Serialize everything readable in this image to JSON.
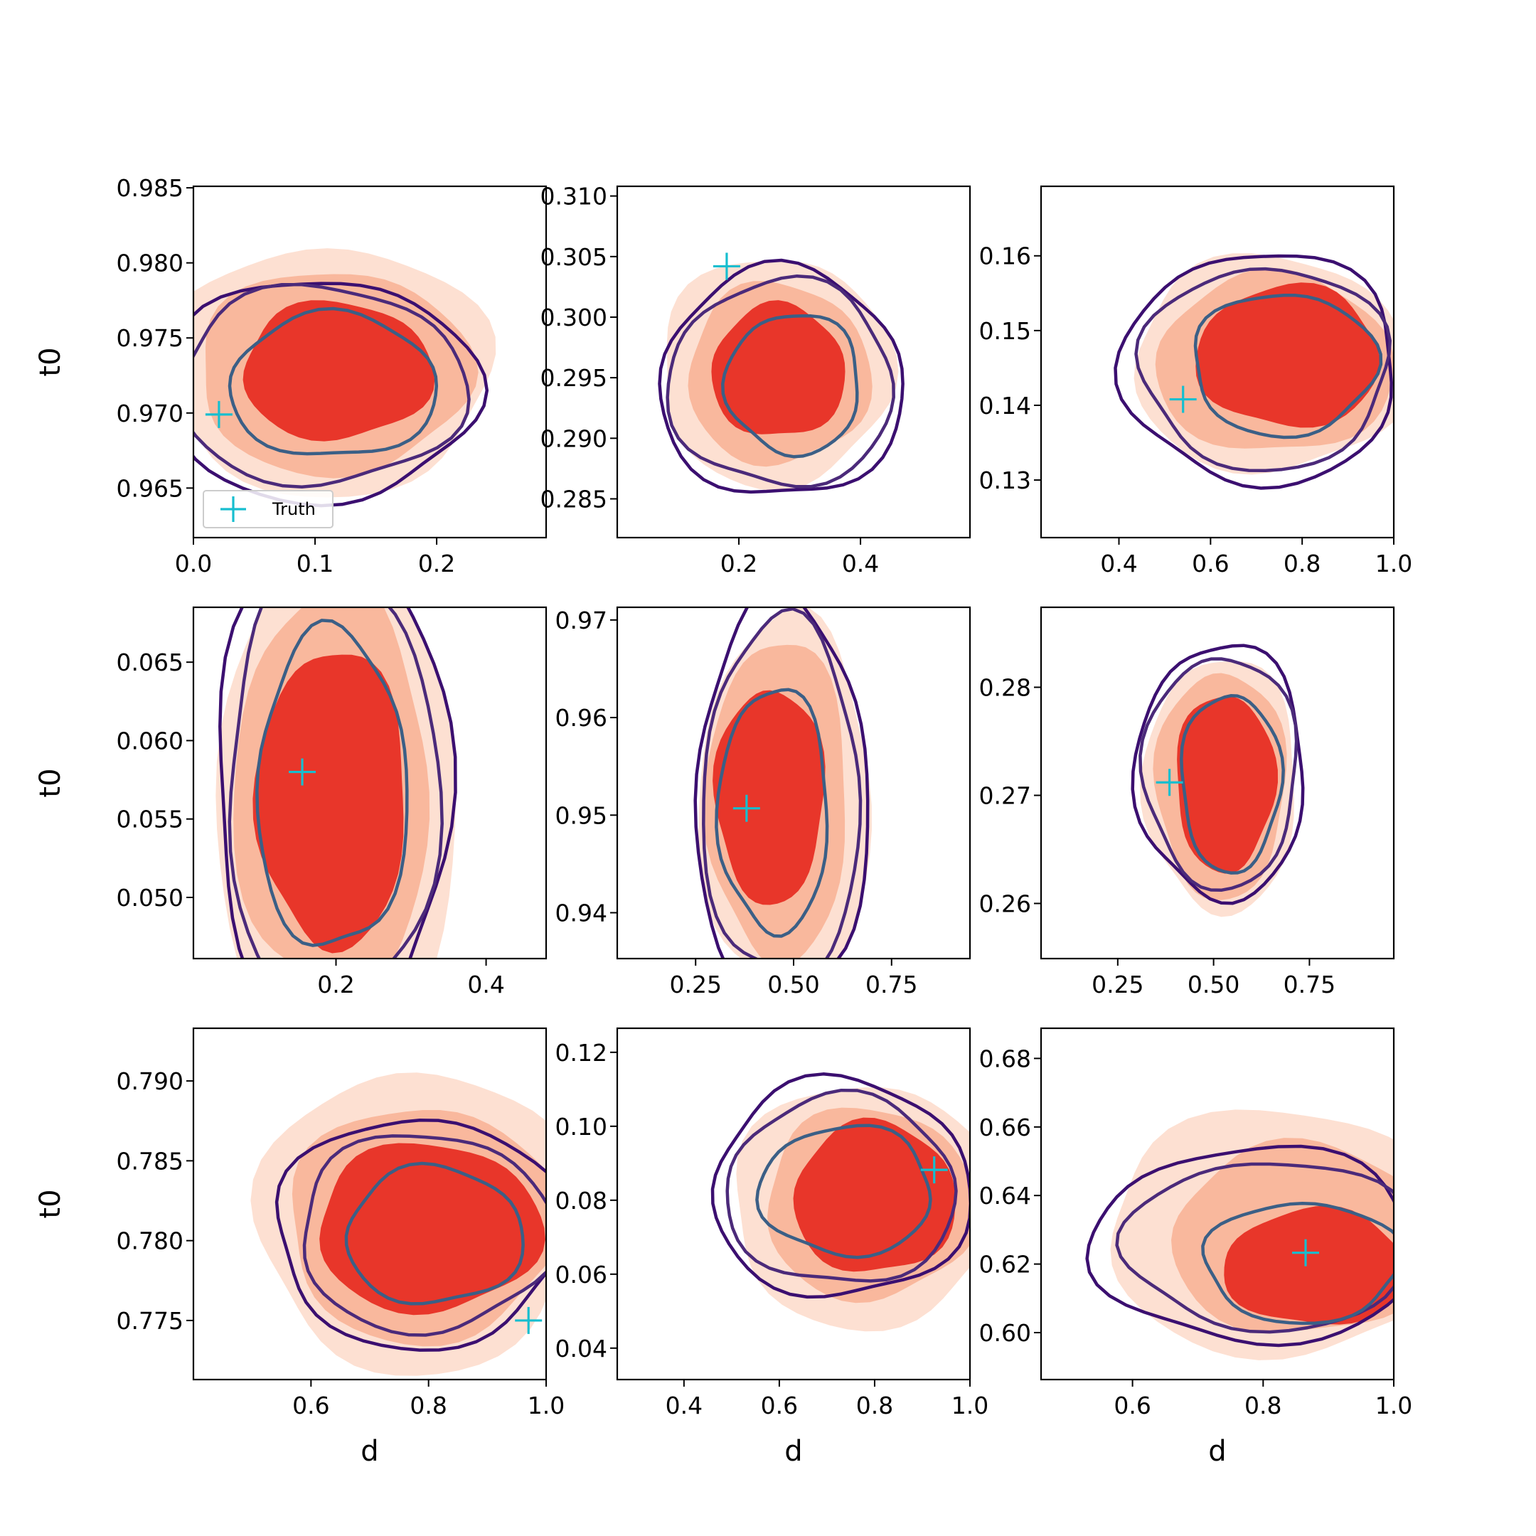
{
  "figure": {
    "chart_data": [
      {
        "type": "contour",
        "ylabel": "t0",
        "xlabel": "",
        "xlim": [
          0.0,
          0.29
        ],
        "ylim": [
          0.9617,
          0.9851
        ],
        "xticks": [
          {
            "v": 0.0,
            "label": "0.0"
          },
          {
            "v": 0.1,
            "label": "0.1"
          },
          {
            "v": 0.2,
            "label": "0.2"
          }
        ],
        "yticks": [
          {
            "v": 0.965,
            "label": "0.965"
          },
          {
            "v": 0.97,
            "label": "0.970"
          },
          {
            "v": 0.975,
            "label": "0.975"
          },
          {
            "v": 0.98,
            "label": "0.980"
          },
          {
            "v": 0.985,
            "label": "0.985"
          }
        ],
        "truth": {
          "x": 0.021,
          "y": 0.9699
        },
        "legend": {
          "label": "Truth",
          "loc": "lower left"
        },
        "filled": [
          {
            "cx": 0.11,
            "cy": 0.9728,
            "rx": 0.135,
            "ry": 0.0083
          },
          {
            "cx": 0.115,
            "cy": 0.9727,
            "rx": 0.112,
            "ry": 0.0068
          },
          {
            "cx": 0.118,
            "cy": 0.9728,
            "rx": 0.078,
            "ry": 0.0046
          }
        ],
        "lines": [
          {
            "cx": 0.105,
            "cy": 0.9715,
            "rx": 0.128,
            "ry": 0.0074,
            "color": "#3b0f70"
          },
          {
            "cx": 0.105,
            "cy": 0.9718,
            "rx": 0.118,
            "ry": 0.0066,
            "color": "#4b2a7a"
          },
          {
            "cx": 0.115,
            "cy": 0.9718,
            "rx": 0.085,
            "ry": 0.0048,
            "color": "#3b5f86"
          }
        ]
      },
      {
        "type": "contour",
        "ylabel": "",
        "xlabel": "",
        "xlim": [
          0.0,
          0.58
        ],
        "ylim": [
          0.2818,
          0.3108
        ],
        "xticks": [
          {
            "v": 0.2,
            "label": "0.2"
          },
          {
            "v": 0.4,
            "label": "0.4"
          }
        ],
        "yticks": [
          {
            "v": 0.285,
            "label": "0.285"
          },
          {
            "v": 0.29,
            "label": "0.290"
          },
          {
            "v": 0.295,
            "label": "0.295"
          },
          {
            "v": 0.3,
            "label": "0.300"
          },
          {
            "v": 0.305,
            "label": "0.305"
          },
          {
            "v": 0.31,
            "label": "0.310"
          }
        ],
        "truth": {
          "x": 0.18,
          "y": 0.3042
        },
        "filled": [
          {
            "cx": 0.26,
            "cy": 0.2955,
            "rx": 0.19,
            "ry": 0.0095
          },
          {
            "cx": 0.265,
            "cy": 0.2953,
            "rx": 0.15,
            "ry": 0.0075
          },
          {
            "cx": 0.265,
            "cy": 0.2955,
            "rx": 0.11,
            "ry": 0.0055
          }
        ],
        "lines": [
          {
            "cx": 0.27,
            "cy": 0.2945,
            "rx": 0.2,
            "ry": 0.0095,
            "color": "#3b0f70"
          },
          {
            "cx": 0.27,
            "cy": 0.2945,
            "rx": 0.185,
            "ry": 0.0085,
            "color": "#4b2a7a"
          },
          {
            "cx": 0.29,
            "cy": 0.2945,
            "rx": 0.11,
            "ry": 0.0058,
            "color": "#3b5f86"
          }
        ]
      },
      {
        "type": "contour",
        "ylabel": "",
        "xlabel": "",
        "xlim": [
          0.23,
          1.0
        ],
        "ylim": [
          0.1223,
          0.1693
        ],
        "xticks": [
          {
            "v": 0.4,
            "label": "0.4"
          },
          {
            "v": 0.6,
            "label": "0.6"
          },
          {
            "v": 0.8,
            "label": "0.8"
          },
          {
            "v": 1.0,
            "label": "1.0"
          }
        ],
        "yticks": [
          {
            "v": 0.13,
            "label": "0.13"
          },
          {
            "v": 0.14,
            "label": "0.14"
          },
          {
            "v": 0.15,
            "label": "0.15"
          },
          {
            "v": 0.16,
            "label": "0.16"
          }
        ],
        "truth": {
          "x": 0.54,
          "y": 0.1408
        },
        "filled": [
          {
            "cx": 0.73,
            "cy": 0.1455,
            "rx": 0.3,
            "ry": 0.0145
          },
          {
            "cx": 0.74,
            "cy": 0.1455,
            "rx": 0.26,
            "ry": 0.012
          },
          {
            "cx": 0.77,
            "cy": 0.1465,
            "rx": 0.2,
            "ry": 0.0095
          }
        ],
        "lines": [
          {
            "cx": 0.71,
            "cy": 0.145,
            "rx": 0.3,
            "ry": 0.0155,
            "color": "#3b0f70"
          },
          {
            "cx": 0.72,
            "cy": 0.145,
            "rx": 0.27,
            "ry": 0.0135,
            "color": "#4b2a7a"
          },
          {
            "cx": 0.76,
            "cy": 0.1455,
            "rx": 0.2,
            "ry": 0.0095,
            "color": "#3b5f86"
          }
        ]
      },
      {
        "type": "contour",
        "ylabel": "t0",
        "xlabel": "",
        "xlim": [
          0.01,
          0.48
        ],
        "ylim": [
          0.0461,
          0.0685
        ],
        "xticks": [
          {
            "v": 0.2,
            "label": "0.2"
          },
          {
            "v": 0.4,
            "label": "0.4"
          }
        ],
        "yticks": [
          {
            "v": 0.05,
            "label": "0.050"
          },
          {
            "v": 0.055,
            "label": "0.055"
          },
          {
            "v": 0.06,
            "label": "0.060"
          },
          {
            "v": 0.065,
            "label": "0.065"
          }
        ],
        "truth": {
          "x": 0.155,
          "y": 0.058
        },
        "filled": [
          {
            "cx": 0.2,
            "cy": 0.0565,
            "rx": 0.16,
            "ry": 0.0165
          },
          {
            "cx": 0.195,
            "cy": 0.0567,
            "rx": 0.13,
            "ry": 0.013
          },
          {
            "cx": 0.195,
            "cy": 0.0563,
            "rx": 0.1,
            "ry": 0.0095
          }
        ],
        "lines": [
          {
            "cx": 0.195,
            "cy": 0.0567,
            "rx": 0.155,
            "ry": 0.0162,
            "color": "#3b0f70"
          },
          {
            "cx": 0.195,
            "cy": 0.0567,
            "rx": 0.14,
            "ry": 0.0145,
            "color": "#4b2a7a"
          },
          {
            "cx": 0.195,
            "cy": 0.0568,
            "rx": 0.1,
            "ry": 0.0102,
            "color": "#3b5f86"
          }
        ]
      },
      {
        "type": "contour",
        "ylabel": "",
        "xlabel": "",
        "xlim": [
          0.05,
          0.95
        ],
        "ylim": [
          0.9353,
          0.9713
        ],
        "xticks": [
          {
            "v": 0.25,
            "label": "0.25"
          },
          {
            "v": 0.5,
            "label": "0.50"
          },
          {
            "v": 0.75,
            "label": "0.75"
          }
        ],
        "yticks": [
          {
            "v": 0.94,
            "label": "0.94"
          },
          {
            "v": 0.95,
            "label": "0.95"
          },
          {
            "v": 0.96,
            "label": "0.96"
          },
          {
            "v": 0.97,
            "label": "0.97"
          }
        ],
        "truth": {
          "x": 0.38,
          "y": 0.9507
        },
        "filled": [
          {
            "cx": 0.48,
            "cy": 0.951,
            "rx": 0.22,
            "ry": 0.0195
          },
          {
            "cx": 0.46,
            "cy": 0.9515,
            "rx": 0.18,
            "ry": 0.0165
          },
          {
            "cx": 0.44,
            "cy": 0.952,
            "rx": 0.14,
            "ry": 0.011
          }
        ],
        "lines": [
          {
            "cx": 0.47,
            "cy": 0.9515,
            "rx": 0.22,
            "ry": 0.0205,
            "color": "#3b0f70"
          },
          {
            "cx": 0.47,
            "cy": 0.9515,
            "rx": 0.2,
            "ry": 0.0185,
            "color": "#4b2a7a"
          },
          {
            "cx": 0.45,
            "cy": 0.9505,
            "rx": 0.14,
            "ry": 0.0125,
            "color": "#3b5f86"
          }
        ]
      },
      {
        "type": "contour",
        "ylabel": "",
        "xlabel": "",
        "xlim": [
          0.05,
          0.97
        ],
        "ylim": [
          0.2549,
          0.2874
        ],
        "xticks": [
          {
            "v": 0.25,
            "label": "0.25"
          },
          {
            "v": 0.5,
            "label": "0.50"
          },
          {
            "v": 0.75,
            "label": "0.75"
          }
        ],
        "yticks": [
          {
            "v": 0.26,
            "label": "0.26"
          },
          {
            "v": 0.27,
            "label": "0.27"
          },
          {
            "v": 0.28,
            "label": "0.28"
          }
        ],
        "truth": {
          "x": 0.385,
          "y": 0.2712
        },
        "filled": [
          {
            "cx": 0.52,
            "cy": 0.271,
            "rx": 0.2,
            "ry": 0.0118
          },
          {
            "cx": 0.52,
            "cy": 0.271,
            "rx": 0.17,
            "ry": 0.0105
          },
          {
            "cx": 0.53,
            "cy": 0.2712,
            "rx": 0.13,
            "ry": 0.0082
          }
        ],
        "lines": [
          {
            "cx": 0.52,
            "cy": 0.2722,
            "rx": 0.22,
            "ry": 0.0118,
            "color": "#3b0f70"
          },
          {
            "cx": 0.52,
            "cy": 0.2722,
            "rx": 0.2,
            "ry": 0.0107,
            "color": "#4b2a7a"
          },
          {
            "cx": 0.545,
            "cy": 0.2712,
            "rx": 0.13,
            "ry": 0.0082,
            "color": "#3b5f86"
          }
        ]
      },
      {
        "type": "contour",
        "ylabel": "t0",
        "xlabel": "d",
        "xlim": [
          0.4,
          1.0
        ],
        "ylim": [
          0.7713,
          0.7933
        ],
        "xticks": [
          {
            "v": 0.6,
            "label": "0.6"
          },
          {
            "v": 0.8,
            "label": "0.8"
          },
          {
            "v": 1.0,
            "label": "1.0"
          }
        ],
        "yticks": [
          {
            "v": 0.775,
            "label": "0.775"
          },
          {
            "v": 0.78,
            "label": "0.780"
          },
          {
            "v": 0.785,
            "label": "0.785"
          },
          {
            "v": 0.79,
            "label": "0.790"
          }
        ],
        "truth": {
          "x": 0.97,
          "y": 0.775
        },
        "filled": [
          {
            "cx": 0.78,
            "cy": 0.7812,
            "rx": 0.27,
            "ry": 0.0095
          },
          {
            "cx": 0.79,
            "cy": 0.781,
            "rx": 0.23,
            "ry": 0.0074
          },
          {
            "cx": 0.8,
            "cy": 0.7808,
            "rx": 0.19,
            "ry": 0.0053
          }
        ],
        "lines": [
          {
            "cx": 0.785,
            "cy": 0.7805,
            "rx": 0.245,
            "ry": 0.0072,
            "color": "#3b0f70"
          },
          {
            "cx": 0.795,
            "cy": 0.7805,
            "rx": 0.215,
            "ry": 0.0062,
            "color": "#4b2a7a"
          },
          {
            "cx": 0.81,
            "cy": 0.7803,
            "rx": 0.15,
            "ry": 0.0043,
            "color": "#3b5f86"
          }
        ]
      },
      {
        "type": "contour",
        "ylabel": "",
        "xlabel": "d",
        "xlim": [
          0.26,
          1.0
        ],
        "ylim": [
          0.0315,
          0.1265
        ],
        "xticks": [
          {
            "v": 0.4,
            "label": "0.4"
          },
          {
            "v": 0.6,
            "label": "0.6"
          },
          {
            "v": 0.8,
            "label": "0.8"
          },
          {
            "v": 1.0,
            "label": "1.0"
          }
        ],
        "yticks": [
          {
            "v": 0.04,
            "label": "0.04"
          },
          {
            "v": 0.06,
            "label": "0.06"
          },
          {
            "v": 0.08,
            "label": "0.08"
          },
          {
            "v": 0.1,
            "label": "0.10"
          },
          {
            "v": 0.12,
            "label": "0.12"
          }
        ],
        "truth": {
          "x": 0.925,
          "y": 0.0882
        },
        "filled": [
          {
            "cx": 0.78,
            "cy": 0.0785,
            "rx": 0.28,
            "ry": 0.033
          },
          {
            "cx": 0.79,
            "cy": 0.079,
            "rx": 0.22,
            "ry": 0.026
          },
          {
            "cx": 0.8,
            "cy": 0.0805,
            "rx": 0.17,
            "ry": 0.0205
          }
        ],
        "lines": [
          {
            "cx": 0.73,
            "cy": 0.083,
            "rx": 0.27,
            "ry": 0.0295,
            "color": "#3b0f70"
          },
          {
            "cx": 0.73,
            "cy": 0.0825,
            "rx": 0.24,
            "ry": 0.0255,
            "color": "#4b2a7a"
          },
          {
            "cx": 0.74,
            "cy": 0.0825,
            "rx": 0.18,
            "ry": 0.0175,
            "color": "#3b5f86"
          }
        ]
      },
      {
        "type": "contour",
        "ylabel": "",
        "xlabel": "d",
        "xlim": [
          0.46,
          1.0
        ],
        "ylim": [
          0.5863,
          0.6888
        ],
        "xticks": [
          {
            "v": 0.6,
            "label": "0.6"
          },
          {
            "v": 0.8,
            "label": "0.8"
          },
          {
            "v": 1.0,
            "label": "1.0"
          }
        ],
        "yticks": [
          {
            "v": 0.6,
            "label": "0.60"
          },
          {
            "v": 0.62,
            "label": "0.62"
          },
          {
            "v": 0.64,
            "label": "0.64"
          },
          {
            "v": 0.66,
            "label": "0.66"
          },
          {
            "v": 0.68,
            "label": "0.68"
          }
        ],
        "truth": {
          "x": 0.865,
          "y": 0.6233
        },
        "filled": [
          {
            "cx": 0.83,
            "cy": 0.629,
            "rx": 0.27,
            "ry": 0.036
          },
          {
            "cx": 0.86,
            "cy": 0.627,
            "rx": 0.2,
            "ry": 0.028
          },
          {
            "cx": 0.88,
            "cy": 0.619,
            "rx": 0.14,
            "ry": 0.017
          }
        ],
        "lines": [
          {
            "cx": 0.79,
            "cy": 0.6255,
            "rx": 0.25,
            "ry": 0.0285,
            "color": "#3b0f70"
          },
          {
            "cx": 0.81,
            "cy": 0.6255,
            "rx": 0.22,
            "ry": 0.0245,
            "color": "#4b2a7a"
          },
          {
            "cx": 0.86,
            "cy": 0.6205,
            "rx": 0.15,
            "ry": 0.0175,
            "color": "#3b5f86"
          }
        ]
      }
    ]
  },
  "colors": {
    "fill_levels": [
      "#fde0d2",
      "#f9b89d",
      "#e8362a"
    ],
    "truth": "#17becf",
    "axis": "#000000"
  }
}
